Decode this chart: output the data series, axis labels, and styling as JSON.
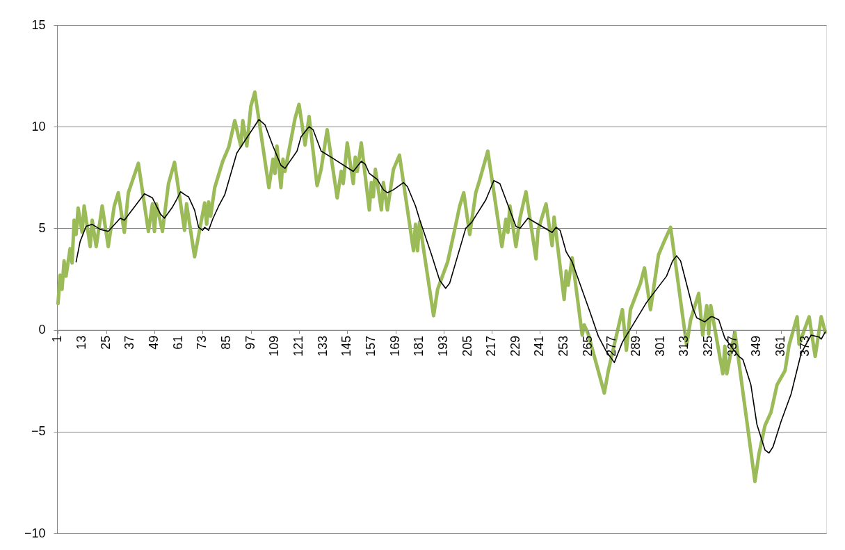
{
  "chart_data": {
    "type": "line",
    "xlim": [
      0.5,
      383.5
    ],
    "ylim": [
      -10,
      15
    ],
    "xticks": [
      1,
      13,
      25,
      37,
      49,
      61,
      73,
      85,
      97,
      109,
      121,
      133,
      145,
      157,
      169,
      181,
      193,
      205,
      217,
      229,
      241,
      253,
      265,
      277,
      289,
      301,
      313,
      325,
      337,
      349,
      361,
      373
    ],
    "yticks": [
      -10,
      -5,
      0,
      5,
      10,
      15
    ],
    "grid": "y",
    "series": [
      {
        "type": "line",
        "color": "#9bbb59",
        "x": [
          1,
          2,
          3,
          4,
          5,
          7,
          8,
          9,
          10,
          11,
          13,
          14,
          17,
          18,
          20,
          23,
          26,
          29,
          31,
          34,
          36,
          41,
          46,
          48,
          49,
          50,
          53,
          56,
          59,
          64,
          65,
          69,
          74,
          75,
          76,
          77,
          79,
          83,
          86,
          89,
          92,
          93,
          95,
          97,
          99,
          106,
          108,
          109,
          110,
          112,
          113,
          114,
          119,
          121,
          124,
          126,
          130,
          132,
          135,
          140,
          142,
          143,
          145,
          148,
          149,
          150,
          152,
          156,
          157,
          158,
          159,
          162,
          163,
          165,
          168,
          171,
          178,
          179,
          180,
          181,
          188,
          190,
          195,
          198,
          201,
          203,
          206,
          209,
          211,
          215,
          222,
          224,
          225,
          226,
          229,
          231,
          234,
          239,
          240,
          244,
          247,
          248,
          253,
          254,
          255,
          257,
          262,
          263,
          265,
          273,
          275,
          282,
          284,
          286,
          291,
          293,
          296,
          300,
          303,
          306,
          314,
          316,
          320,
          322,
          324,
          325,
          326,
          332,
          333,
          334,
          338,
          348,
          350,
          353,
          356,
          359,
          363,
          365,
          369,
          370,
          375,
          378,
          381,
          383
        ],
        "values": [
          1.3,
          2.7,
          2.0,
          3.4,
          2.65,
          4.0,
          3.3,
          5.4,
          4.7,
          6.0,
          4.8,
          6.1,
          4.1,
          5.4,
          4.1,
          6.1,
          4.1,
          6.1,
          6.75,
          4.8,
          6.75,
          8.2,
          4.85,
          6.2,
          4.85,
          6.2,
          4.85,
          7.2,
          8.25,
          4.9,
          6.2,
          3.6,
          6.25,
          5.2,
          6.3,
          5.6,
          7.0,
          8.3,
          9.0,
          10.3,
          9.05,
          10.3,
          9.05,
          11.0,
          11.7,
          7.0,
          8.4,
          7.7,
          9.05,
          7.0,
          8.4,
          7.8,
          10.4,
          11.1,
          9.1,
          10.5,
          7.1,
          7.9,
          9.85,
          6.5,
          7.8,
          7.2,
          9.2,
          7.2,
          8.5,
          7.8,
          9.2,
          5.9,
          7.25,
          6.55,
          7.9,
          5.9,
          7.25,
          5.9,
          7.9,
          8.6,
          3.9,
          5.2,
          3.9,
          5.3,
          0.7,
          2.0,
          3.35,
          4.7,
          6.1,
          6.75,
          4.7,
          6.75,
          7.4,
          8.8,
          4.1,
          5.45,
          4.8,
          6.1,
          4.1,
          5.5,
          6.8,
          3.5,
          4.9,
          6.2,
          4.15,
          5.55,
          1.5,
          2.9,
          2.2,
          3.55,
          -0.25,
          0.25,
          -0.2,
          -3.1,
          -2.0,
          1.0,
          -1.0,
          1.0,
          2.3,
          3.05,
          1.0,
          3.7,
          4.4,
          5.05,
          -0.75,
          0.5,
          1.8,
          -0.25,
          1.2,
          -0.2,
          1.2,
          -2.15,
          -0.8,
          -2.15,
          -0.1,
          -7.45,
          -6.1,
          -4.7,
          -4.05,
          -2.7,
          -2.0,
          -0.75,
          0.65,
          -0.7,
          0.65,
          -1.3,
          0.65,
          -0.1
        ]
      },
      {
        "type": "line",
        "color": "#000000",
        "x": [
          10,
          12,
          15,
          18,
          22,
          26,
          32,
          34,
          44,
          48,
          52,
          54,
          58,
          60,
          62,
          65,
          66,
          69,
          71,
          73,
          74,
          76,
          78,
          81,
          84,
          90,
          93,
          101,
          104,
          108,
          112,
          114,
          120,
          122,
          126,
          128,
          132,
          137,
          148,
          152,
          154,
          156,
          160,
          163,
          165,
          168,
          173,
          175,
          179,
          181,
          187,
          191,
          194,
          196,
          204,
          207,
          214,
          218,
          221,
          229,
          231,
          235,
          247,
          249,
          251,
          254,
          257,
          266,
          270,
          274,
          278,
          282,
          294,
          304,
          307,
          309,
          311,
          317,
          319,
          323,
          326,
          327,
          330,
          333,
          340,
          342,
          346,
          349,
          353,
          355,
          357,
          361,
          366,
          371,
          376,
          380,
          381,
          383
        ],
        "values": [
          3.35,
          4.35,
          5.1,
          5.2,
          4.95,
          4.85,
          5.5,
          5.4,
          6.7,
          6.5,
          5.7,
          5.5,
          6.05,
          6.4,
          6.8,
          6.6,
          6.55,
          5.9,
          5.05,
          4.9,
          5.05,
          4.9,
          5.45,
          6.1,
          6.65,
          8.7,
          9.15,
          10.35,
          10.1,
          9.05,
          8.1,
          7.95,
          8.8,
          9.5,
          10.0,
          9.85,
          8.8,
          8.5,
          7.8,
          8.3,
          8.15,
          7.7,
          7.4,
          6.9,
          6.75,
          6.9,
          7.25,
          7.05,
          6.1,
          5.45,
          3.7,
          2.45,
          2.05,
          2.3,
          5.0,
          5.3,
          6.4,
          7.35,
          7.2,
          5.1,
          5.0,
          5.5,
          4.8,
          5.05,
          4.9,
          3.85,
          3.35,
          0.85,
          -0.3,
          -1.05,
          -1.6,
          -0.6,
          1.35,
          2.65,
          3.4,
          3.65,
          3.4,
          1.1,
          0.6,
          0.4,
          0.65,
          0.65,
          0.5,
          -0.4,
          -1.3,
          -1.45,
          -2.7,
          -4.65,
          -5.9,
          -6.05,
          -5.75,
          -4.5,
          -3.15,
          -1.15,
          -0.25,
          -0.35,
          -0.45,
          -0.1
        ]
      }
    ]
  }
}
